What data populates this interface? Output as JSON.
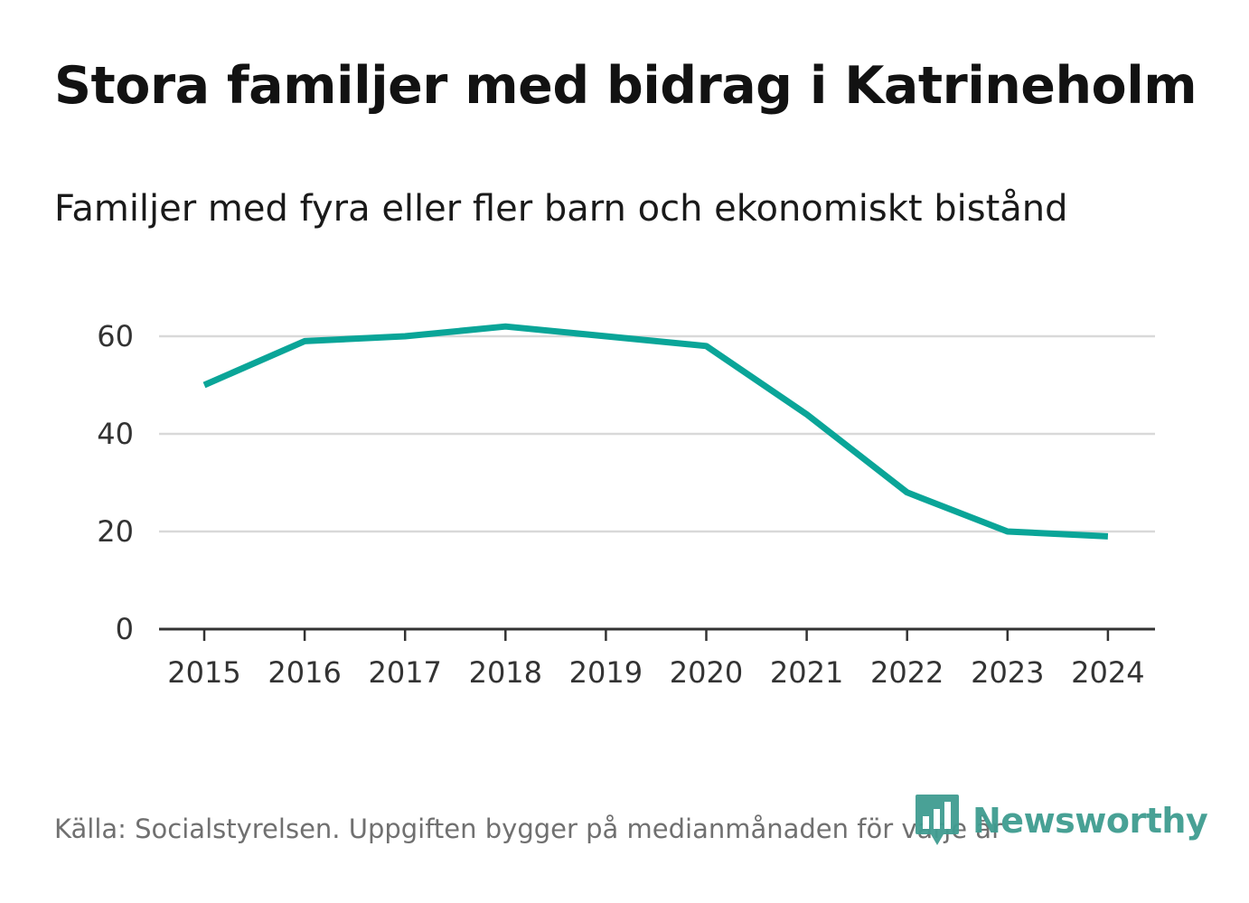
{
  "header": {
    "title": "Stora familjer med bidrag i Katrineholm",
    "subtitle": "Familjer med fyra eller fler barn och ekonomiskt bistånd"
  },
  "footer": {
    "source": "Källa: Socialstyrelsen. Uppgiften bygger på medianmånaden för varje år",
    "logo_text": "Newsworthy"
  },
  "colors": {
    "line": "#0aa598",
    "grid": "#d9d9d9",
    "axis": "#333333",
    "logo": "#3f9c90"
  },
  "chart_data": {
    "type": "line",
    "title": "Stora familjer med bidrag i Katrineholm",
    "subtitle": "Familjer med fyra eller fler barn och ekonomiskt bistånd",
    "xlabel": "",
    "ylabel": "",
    "categories": [
      "2015",
      "2016",
      "2017",
      "2018",
      "2019",
      "2020",
      "2021",
      "2022",
      "2023",
      "2024"
    ],
    "series": [
      {
        "name": "Familjer med fyra eller fler barn och ekonomiskt bistånd",
        "values": [
          50,
          59,
          60,
          62,
          60,
          58,
          44,
          28,
          20,
          19
        ]
      }
    ],
    "ylim": [
      0,
      70
    ],
    "yticks": [
      "0",
      "20",
      "40",
      "60"
    ],
    "grid": true,
    "legend": "none"
  }
}
